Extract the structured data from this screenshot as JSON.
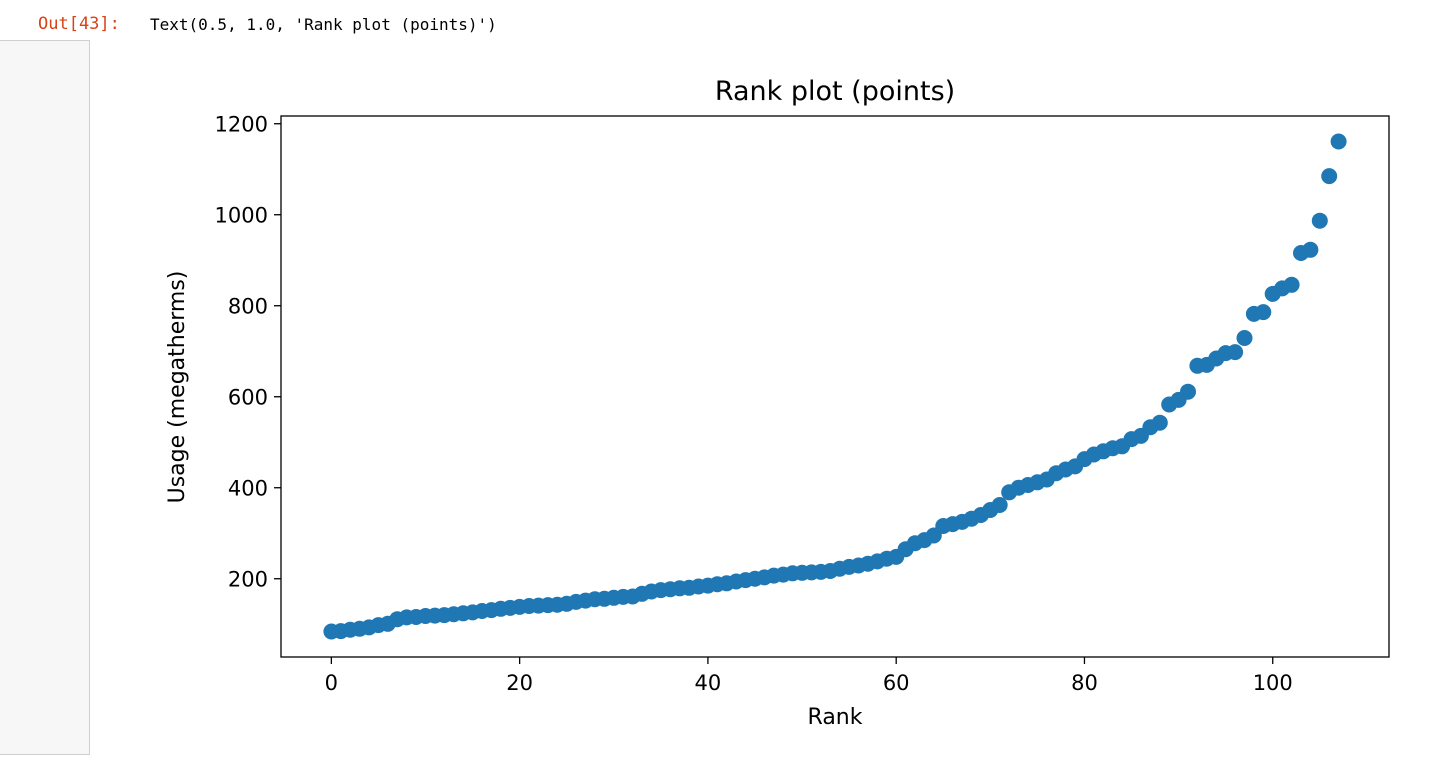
{
  "notebook": {
    "out_prompt": "Out[43]:",
    "out_text": "Text(0.5, 1.0, 'Rank plot (points)')"
  },
  "colors": {
    "marker": "#1f77b4",
    "prompt": "#d84315",
    "gutter": "#f7f7f7"
  },
  "chart_data": {
    "type": "scatter",
    "title": "Rank plot (points)",
    "xlabel": "Rank",
    "ylabel": "Usage (megatherms)",
    "xlim": [
      -5.35,
      112.35
    ],
    "ylim": [
      28,
      1217
    ],
    "xticks": [
      0,
      20,
      40,
      60,
      80,
      100
    ],
    "yticks": [
      200,
      400,
      600,
      800,
      1000,
      1200
    ],
    "grid": false,
    "legend": "none",
    "x": [
      0,
      1,
      2,
      3,
      4,
      5,
      6,
      7,
      8,
      9,
      10,
      11,
      12,
      13,
      14,
      15,
      16,
      17,
      18,
      19,
      20,
      21,
      22,
      23,
      24,
      25,
      26,
      27,
      28,
      29,
      30,
      31,
      32,
      33,
      34,
      35,
      36,
      37,
      38,
      39,
      40,
      41,
      42,
      43,
      44,
      45,
      46,
      47,
      48,
      49,
      50,
      51,
      52,
      53,
      54,
      55,
      56,
      57,
      58,
      59,
      60,
      61,
      62,
      63,
      64,
      65,
      66,
      67,
      68,
      69,
      70,
      71,
      72,
      73,
      74,
      75,
      76,
      77,
      78,
      79,
      80,
      81,
      82,
      83,
      84,
      85,
      86,
      87,
      88,
      89,
      90,
      91,
      92,
      93,
      94,
      95,
      96,
      97,
      98,
      99,
      100,
      101,
      102,
      103,
      104,
      105,
      106,
      107
    ],
    "y": [
      84,
      85,
      88,
      90,
      93,
      98,
      101,
      111,
      115,
      116,
      118,
      119,
      120,
      122,
      124,
      126,
      129,
      131,
      134,
      136,
      138,
      140,
      141,
      142,
      143,
      145,
      149,
      152,
      155,
      156,
      158,
      160,
      161,
      167,
      172,
      175,
      177,
      179,
      180,
      183,
      185,
      188,
      190,
      194,
      197,
      200,
      203,
      207,
      209,
      212,
      213,
      214,
      215,
      217,
      222,
      226,
      229,
      233,
      238,
      244,
      248,
      265,
      278,
      285,
      295,
      316,
      320,
      325,
      332,
      340,
      351,
      362,
      390,
      400,
      406,
      412,
      418,
      432,
      440,
      447,
      463,
      473,
      480,
      487,
      491,
      507,
      514,
      533,
      543,
      583,
      593,
      611,
      668,
      670,
      684,
      696,
      698,
      729,
      782,
      786,
      826,
      838,
      846,
      916,
      923,
      987,
      1085,
      1161
    ]
  }
}
